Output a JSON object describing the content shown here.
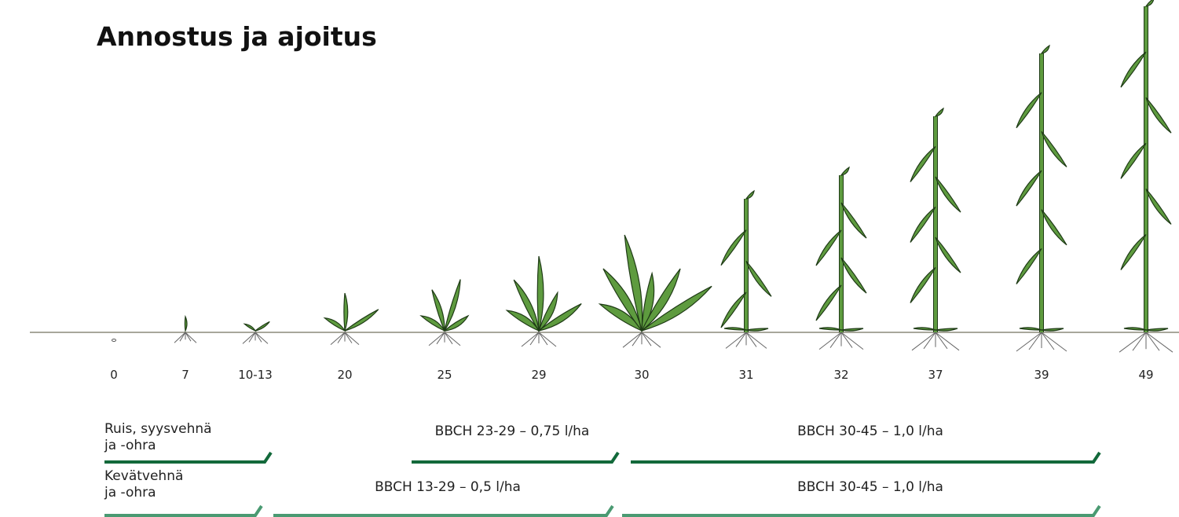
{
  "title": "Annostus ja ajoitus",
  "stages": [
    "0",
    "7",
    "10-13",
    "20",
    "25",
    "29",
    "30",
    "31",
    "32",
    "37",
    "39",
    "49"
  ],
  "rows": [
    {
      "label_lines": [
        "Ruis, syysvehnä",
        "ja -ohra"
      ],
      "doses": [
        "BBCH 23-29 – 0,75 l/ha",
        "BBCH 30-45 – 1,0 l/ha"
      ]
    },
    {
      "label_lines": [
        "Kevätvehnä",
        "ja -ohra"
      ],
      "doses": [
        "BBCH 13-29 – 0,5 l/ha",
        "BBCH 30-45 – 1,0 l/ha"
      ]
    }
  ]
}
